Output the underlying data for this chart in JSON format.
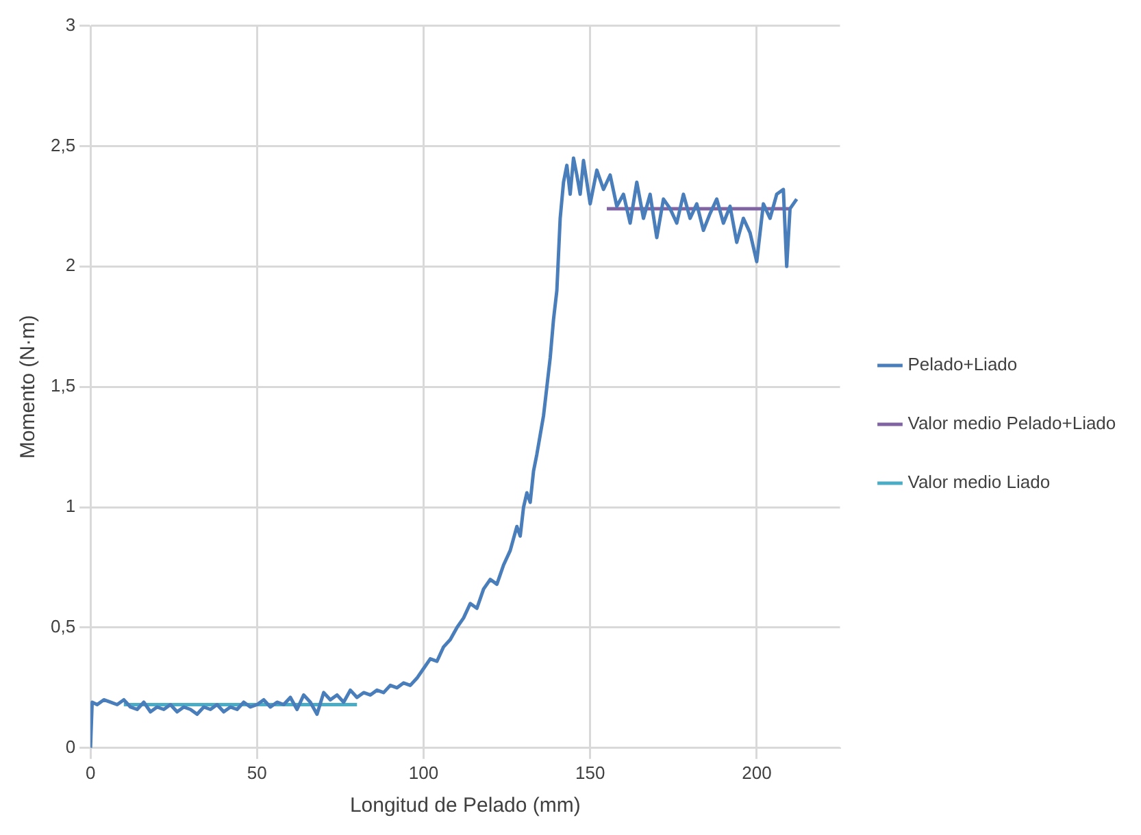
{
  "chart_data": {
    "type": "line",
    "xlabel": "Longitud de Pelado (mm)",
    "ylabel": "Momento (N·m)",
    "xlim": [
      0,
      225
    ],
    "xticks": [
      0,
      50,
      100,
      150,
      200
    ],
    "ylim": [
      0,
      3
    ],
    "yticks": [
      0,
      {
        "value": 0.5,
        "label": "0,5"
      },
      1,
      {
        "value": 1.5,
        "label": "1,5"
      },
      2,
      {
        "value": 2.5,
        "label": "2,5"
      },
      3
    ],
    "grid": true,
    "legend": "right",
    "marker": "none",
    "line_style": "solid",
    "series": [
      {
        "name": "Pelado+Liado",
        "color": "#4a7ebb",
        "x": [
          0,
          0.5,
          2,
          4,
          6,
          8,
          10,
          12,
          14,
          16,
          18,
          20,
          22,
          24,
          26,
          28,
          30,
          32,
          34,
          36,
          38,
          40,
          42,
          44,
          46,
          48,
          50,
          52,
          54,
          56,
          58,
          60,
          62,
          64,
          66,
          68,
          70,
          72,
          74,
          76,
          78,
          80,
          82,
          84,
          86,
          88,
          90,
          92,
          94,
          96,
          98,
          100,
          102,
          104,
          106,
          108,
          110,
          112,
          114,
          116,
          118,
          120,
          122,
          124,
          126,
          128,
          129,
          130,
          131,
          132,
          133,
          134,
          135,
          136,
          137,
          138,
          139,
          140,
          141,
          142,
          143,
          144,
          145,
          146,
          147,
          148,
          149,
          150,
          152,
          154,
          156,
          158,
          160,
          162,
          164,
          166,
          168,
          170,
          172,
          174,
          176,
          178,
          180,
          182,
          184,
          186,
          188,
          190,
          192,
          194,
          196,
          198,
          200,
          202,
          204,
          206,
          208,
          209,
          210,
          212
        ],
        "values": [
          0,
          0.19,
          0.18,
          0.2,
          0.19,
          0.18,
          0.2,
          0.17,
          0.16,
          0.19,
          0.15,
          0.17,
          0.16,
          0.18,
          0.15,
          0.17,
          0.16,
          0.14,
          0.17,
          0.16,
          0.18,
          0.15,
          0.17,
          0.16,
          0.19,
          0.17,
          0.18,
          0.2,
          0.17,
          0.19,
          0.18,
          0.21,
          0.16,
          0.22,
          0.19,
          0.14,
          0.23,
          0.2,
          0.22,
          0.19,
          0.24,
          0.21,
          0.23,
          0.22,
          0.24,
          0.23,
          0.26,
          0.25,
          0.27,
          0.26,
          0.29,
          0.33,
          0.37,
          0.36,
          0.42,
          0.45,
          0.5,
          0.54,
          0.6,
          0.58,
          0.66,
          0.7,
          0.68,
          0.76,
          0.82,
          0.92,
          0.88,
          1.0,
          1.06,
          1.02,
          1.15,
          1.22,
          1.3,
          1.38,
          1.5,
          1.62,
          1.78,
          1.9,
          2.2,
          2.35,
          2.42,
          2.3,
          2.45,
          2.38,
          2.3,
          2.44,
          2.35,
          2.26,
          2.4,
          2.32,
          2.38,
          2.25,
          2.3,
          2.18,
          2.35,
          2.2,
          2.3,
          2.12,
          2.28,
          2.24,
          2.18,
          2.3,
          2.2,
          2.26,
          2.15,
          2.22,
          2.28,
          2.18,
          2.25,
          2.1,
          2.2,
          2.14,
          2.02,
          2.26,
          2.2,
          2.3,
          2.32,
          2.0,
          2.24,
          2.28
        ]
      },
      {
        "name": "Valor medio Pelado+Liado",
        "color": "#8064a2",
        "x": [
          155,
          210
        ],
        "values": [
          2.24,
          2.24
        ]
      },
      {
        "name": "Valor medio Liado",
        "color": "#4bacc6",
        "x": [
          10,
          80
        ],
        "values": [
          0.18,
          0.18
        ]
      }
    ]
  }
}
